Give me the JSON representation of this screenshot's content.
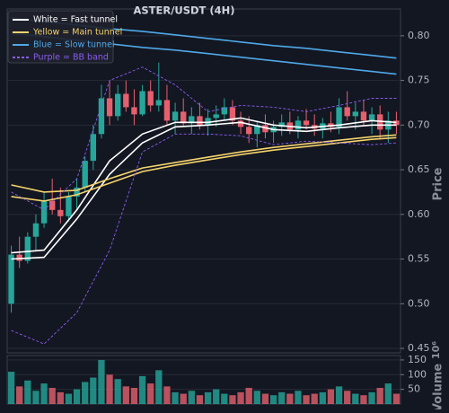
{
  "chart_data": {
    "type": "candlestick",
    "title": "ASTER/USDT (4H)",
    "y_label": "Price",
    "volume_label": "Volume",
    "volume_offset": "10⁶",
    "up_color": "#26a69a",
    "down_color": "#e5606e",
    "open": [
      0.5,
      0.555,
      0.548,
      0.575,
      0.59,
      0.615,
      0.605,
      0.598,
      0.62,
      0.63,
      0.66,
      0.69,
      0.73,
      0.71,
      0.735,
      0.72,
      0.712,
      0.738,
      0.722,
      0.728,
      0.705,
      0.715,
      0.702,
      0.71,
      0.7,
      0.708,
      0.712,
      0.72,
      0.705,
      0.698,
      0.69,
      0.7,
      0.692,
      0.698,
      0.703,
      0.695,
      0.705,
      0.7,
      0.696,
      0.702,
      0.698,
      0.72,
      0.71,
      0.715,
      0.705,
      0.712,
      0.695,
      0.705
    ],
    "high": [
      0.565,
      0.575,
      0.58,
      0.6,
      0.625,
      0.64,
      0.63,
      0.625,
      0.64,
      0.665,
      0.7,
      0.745,
      0.75,
      0.745,
      0.75,
      0.74,
      0.745,
      0.75,
      0.77,
      0.745,
      0.725,
      0.73,
      0.72,
      0.725,
      0.718,
      0.722,
      0.73,
      0.728,
      0.715,
      0.71,
      0.705,
      0.712,
      0.705,
      0.712,
      0.715,
      0.71,
      0.718,
      0.712,
      0.708,
      0.715,
      0.73,
      0.738,
      0.725,
      0.728,
      0.72,
      0.722,
      0.715,
      0.715
    ],
    "low": [
      0.49,
      0.54,
      0.545,
      0.56,
      0.585,
      0.6,
      0.59,
      0.592,
      0.605,
      0.625,
      0.65,
      0.685,
      0.7,
      0.705,
      0.715,
      0.7,
      0.71,
      0.715,
      0.715,
      0.7,
      0.69,
      0.698,
      0.69,
      0.695,
      0.688,
      0.698,
      0.705,
      0.7,
      0.69,
      0.68,
      0.675,
      0.685,
      0.68,
      0.688,
      0.69,
      0.685,
      0.695,
      0.688,
      0.685,
      0.692,
      0.69,
      0.705,
      0.695,
      0.7,
      0.69,
      0.685,
      0.68,
      0.69
    ],
    "close": [
      0.555,
      0.548,
      0.575,
      0.59,
      0.615,
      0.605,
      0.598,
      0.62,
      0.63,
      0.66,
      0.69,
      0.73,
      0.71,
      0.735,
      0.72,
      0.712,
      0.738,
      0.722,
      0.728,
      0.705,
      0.715,
      0.702,
      0.71,
      0.7,
      0.708,
      0.712,
      0.72,
      0.705,
      0.698,
      0.69,
      0.7,
      0.692,
      0.698,
      0.703,
      0.695,
      0.705,
      0.7,
      0.696,
      0.702,
      0.698,
      0.72,
      0.71,
      0.715,
      0.705,
      0.712,
      0.695,
      0.705,
      0.7
    ],
    "volume": [
      110,
      60,
      80,
      45,
      70,
      55,
      40,
      35,
      50,
      75,
      90,
      150,
      100,
      85,
      60,
      55,
      95,
      70,
      115,
      60,
      40,
      35,
      45,
      30,
      40,
      50,
      35,
      30,
      40,
      55,
      45,
      35,
      30,
      40,
      35,
      45,
      30,
      35,
      40,
      50,
      60,
      45,
      35,
      30,
      40,
      55,
      70,
      35
    ],
    "line_x": [
      0,
      4,
      8,
      12,
      16,
      20,
      24,
      28,
      32,
      36,
      40,
      44,
      47
    ],
    "lines": [
      {
        "name": "White = Fast tunnel",
        "color": "#ffffff",
        "dashed": false,
        "upper": [
          0.557,
          0.56,
          0.605,
          0.66,
          0.69,
          0.703,
          0.703,
          0.708,
          0.7,
          0.697,
          0.7,
          0.705,
          0.703
        ],
        "lower": [
          0.55,
          0.552,
          0.595,
          0.645,
          0.68,
          0.698,
          0.7,
          0.703,
          0.695,
          0.693,
          0.697,
          0.7,
          0.7
        ]
      },
      {
        "name": "Yellow = Main tunnel",
        "color": "#f5d36b",
        "dashed": false,
        "upper": [
          0.633,
          0.625,
          0.627,
          0.64,
          0.652,
          0.658,
          0.664,
          0.67,
          0.675,
          0.679,
          0.683,
          0.687,
          0.689
        ],
        "lower": [
          0.62,
          0.615,
          0.622,
          0.635,
          0.648,
          0.655,
          0.661,
          0.667,
          0.672,
          0.676,
          0.68,
          0.684,
          0.686
        ]
      },
      {
        "name": "Blue = Slow tunnel",
        "color": "#4fa8e8",
        "dashed": false,
        "upper": [
          0.82,
          0.816,
          0.812,
          0.808,
          0.805,
          0.801,
          0.797,
          0.793,
          0.789,
          0.786,
          0.782,
          0.778,
          0.775
        ],
        "lower": [
          0.803,
          0.799,
          0.795,
          0.791,
          0.787,
          0.784,
          0.78,
          0.776,
          0.772,
          0.768,
          0.764,
          0.76,
          0.757
        ]
      },
      {
        "name": "Purple = BB band",
        "color": "#8a5cf0",
        "dashed": true,
        "upper": [
          0.625,
          0.605,
          0.64,
          0.75,
          0.765,
          0.745,
          0.715,
          0.722,
          0.72,
          0.715,
          0.722,
          0.73,
          0.73
        ],
        "lower": [
          0.47,
          0.455,
          0.49,
          0.56,
          0.67,
          0.69,
          0.69,
          0.688,
          0.678,
          0.682,
          0.68,
          0.678,
          0.68
        ]
      }
    ],
    "ylim": [
      0.445,
      0.83
    ],
    "yticks": [
      0.45,
      {
        "value": 0.5,
        "label": "0.50"
      },
      0.55,
      {
        "value": 0.6,
        "label": "0.60"
      },
      0.65,
      {
        "value": 0.7,
        "label": "0.70"
      },
      0.75,
      {
        "value": 0.8,
        "label": "0.80"
      }
    ],
    "volume_ylim": [
      0,
      165
    ],
    "volume_ticks": [
      50,
      100,
      150
    ],
    "grid": true
  }
}
